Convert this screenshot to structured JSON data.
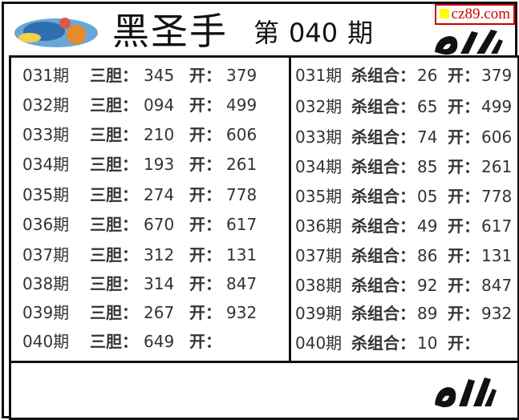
{
  "header": {
    "title": "黑圣手",
    "issue_prefix": "第",
    "issue_number": "040",
    "issue_suffix": "期",
    "watermark": "cz89.com"
  },
  "left_panel": {
    "label": "三胆：",
    "open_label": "开：",
    "rows": [
      {
        "period": "031期",
        "value": "345",
        "open": "379"
      },
      {
        "period": "032期",
        "value": "094",
        "open": "499"
      },
      {
        "period": "033期",
        "value": "210",
        "open": "606"
      },
      {
        "period": "034期",
        "value": "193",
        "open": "261"
      },
      {
        "period": "035期",
        "value": "274",
        "open": "778"
      },
      {
        "period": "036期",
        "value": "670",
        "open": "617"
      },
      {
        "period": "037期",
        "value": "312",
        "open": "131"
      },
      {
        "period": "038期",
        "value": "314",
        "open": "847"
      },
      {
        "period": "039期",
        "value": "267",
        "open": "932"
      },
      {
        "period": "040期",
        "value": "649",
        "open": ""
      }
    ]
  },
  "right_panel": {
    "label": "杀组合：",
    "open_label": "开：",
    "rows": [
      {
        "period": "031期",
        "value": "26",
        "open": "379"
      },
      {
        "period": "032期",
        "value": "65",
        "open": "499"
      },
      {
        "period": "033期",
        "value": "74",
        "open": "606"
      },
      {
        "period": "034期",
        "value": "85",
        "open": "261"
      },
      {
        "period": "035期",
        "value": "05",
        "open": "778"
      },
      {
        "period": "036期",
        "value": "49",
        "open": "617"
      },
      {
        "period": "037期",
        "value": "86",
        "open": "131"
      },
      {
        "period": "038期",
        "value": "92",
        "open": "847"
      },
      {
        "period": "039期",
        "value": "89",
        "open": "932"
      },
      {
        "period": "040期",
        "value": "10",
        "open": ""
      }
    ]
  },
  "icons": {
    "logo": "colorful-logo",
    "hand": "ok-hand-icon"
  }
}
